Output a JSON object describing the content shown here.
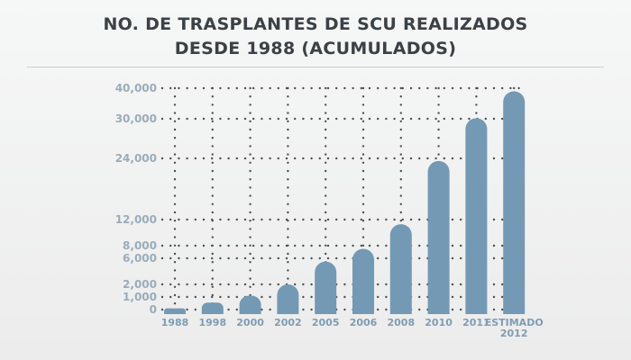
{
  "title": {
    "line1": "NO. DE TRASPLANTES DE SCU REALIZADOS",
    "line2": "DESDE 1988 (ACUMULADOS)"
  },
  "colors": {
    "bar": "#7399b5",
    "dots": "#4a4f55",
    "tick": "#9aacbb",
    "title": "#3a4147"
  },
  "chart_data": {
    "type": "bar",
    "title": "NO. DE TRASPLANTES DE SCU REALIZADOS DESDE 1988 (ACUMULADOS)",
    "xlabel": "",
    "ylabel": "",
    "categories": [
      [
        "1988"
      ],
      [
        "1998"
      ],
      [
        "2000"
      ],
      [
        "2002"
      ],
      [
        "2005"
      ],
      [
        "2006"
      ],
      [
        "2008"
      ],
      [
        "2010"
      ],
      [
        "2011"
      ],
      [
        "ESTIMADO",
        "2012"
      ]
    ],
    "values": [
      100,
      550,
      1100,
      2000,
      5500,
      7500,
      11300,
      23500,
      30200,
      39000
    ],
    "y_ticks": [
      {
        "value": 0,
        "label": "0"
      },
      {
        "value": 1000,
        "label": "1,000"
      },
      {
        "value": 2000,
        "label": "2,000"
      },
      {
        "value": 6000,
        "label": "6,000"
      },
      {
        "value": 8000,
        "label": "8,000"
      },
      {
        "value": 12000,
        "label": "12,000"
      },
      {
        "value": 24000,
        "label": "24,000"
      },
      {
        "value": 30000,
        "label": "30,000"
      },
      {
        "value": 40000,
        "label": "40,000"
      }
    ],
    "ylim": [
      0,
      40000
    ],
    "grid": "dotted horizontal lines at tick values",
    "legend": "none"
  }
}
